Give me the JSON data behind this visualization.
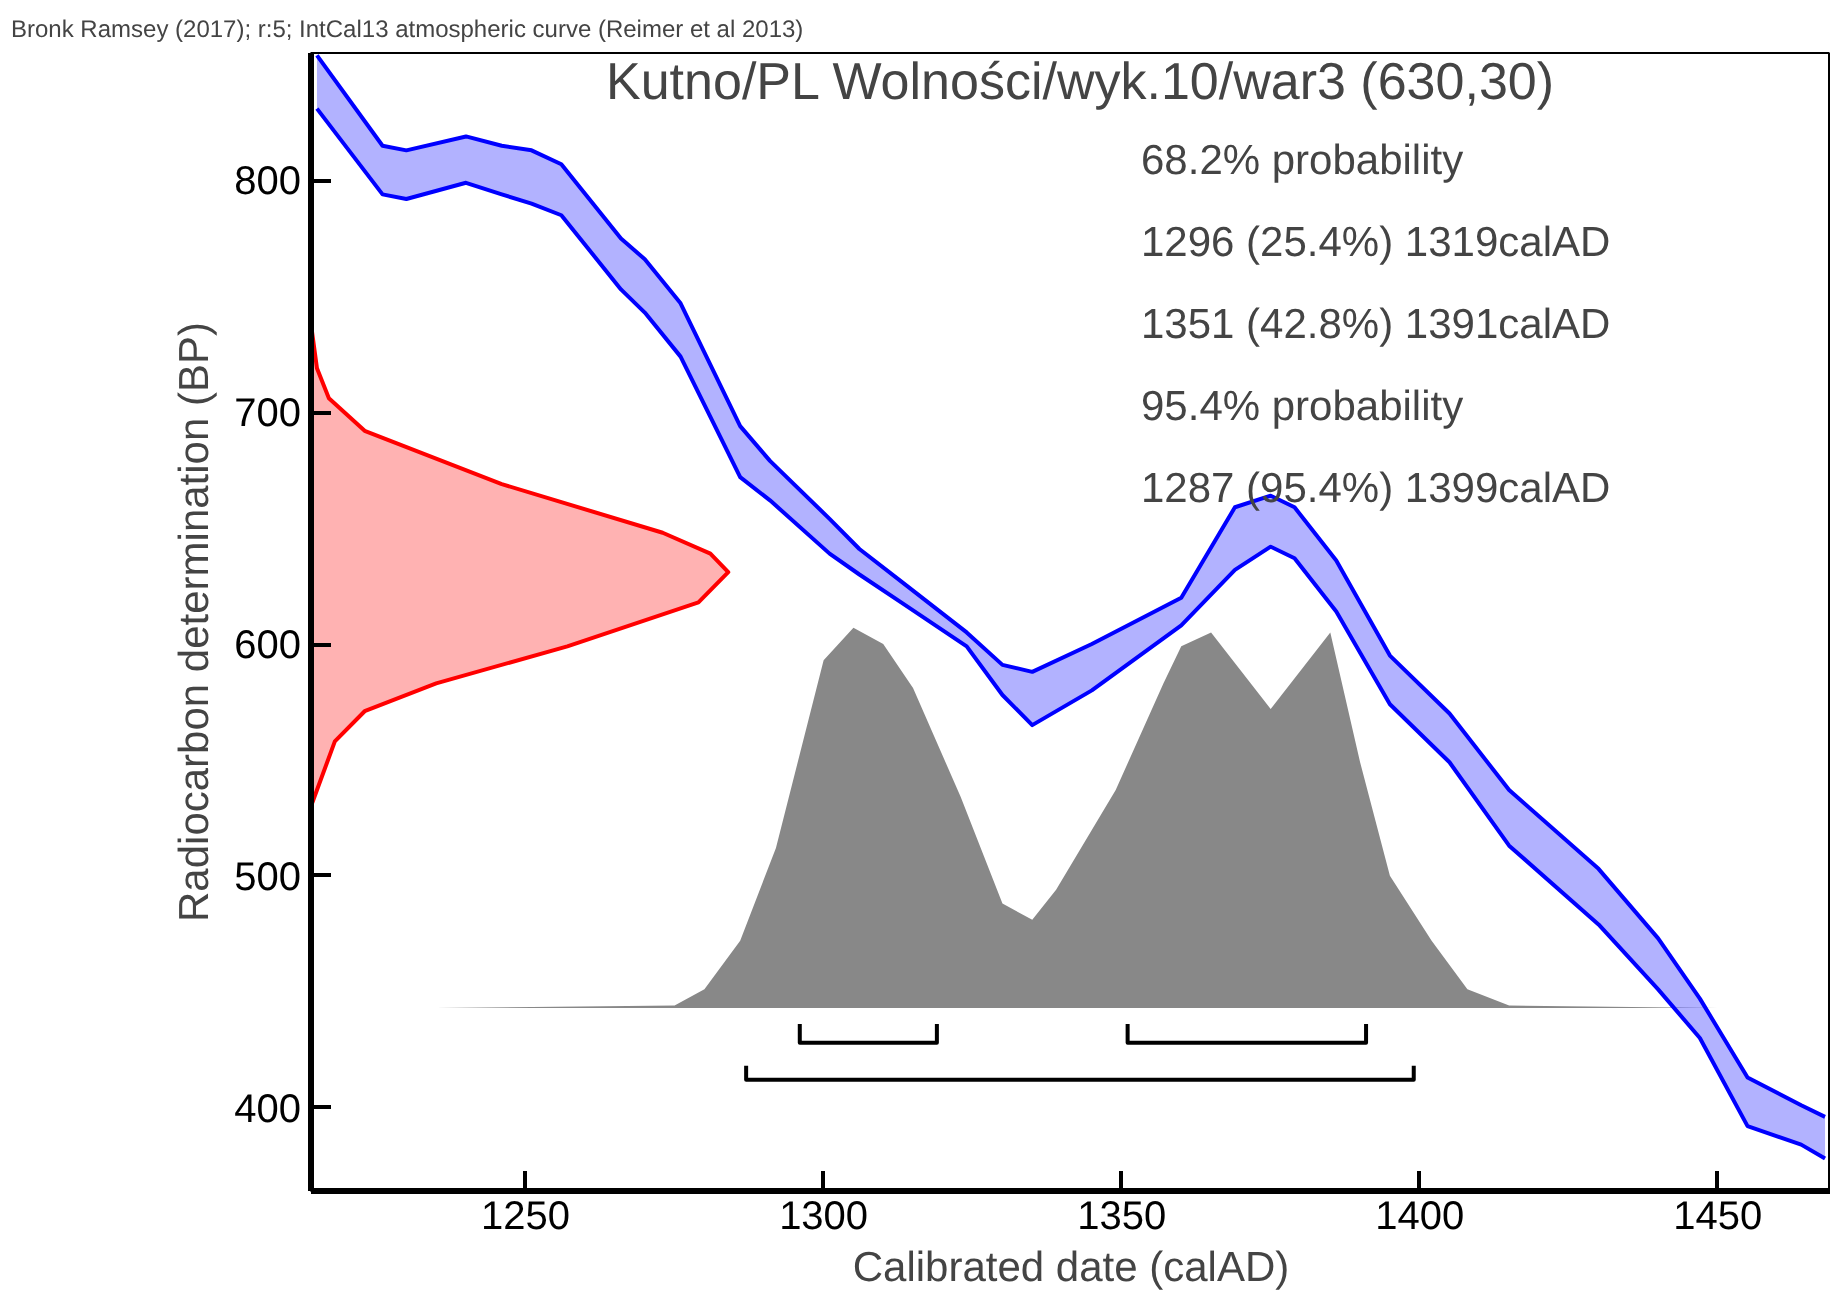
{
  "chart_data": {
    "type": "area",
    "title": "Kutno/PL Wolności/wyk.10/war3 (630,30)",
    "xlabel": "Calibrated date (calAD)",
    "ylabel": "Radiocarbon determination (BP)",
    "annotations": [
      "Bronk Ramsey (2017); r:5; IntCal13 atmospheric curve (Reimer et al 2013)",
      "68.2% probability",
      "1296 (25.4%) 1319calAD",
      "1351 (42.8%) 1391calAD",
      "95.4% probability",
      "1287 (95.4%) 1399calAD"
    ],
    "xlim": [
      1214,
      1469
    ],
    "ylim": [
      364,
      855
    ],
    "xticks": [
      1250,
      1300,
      1350,
      1400,
      1450
    ],
    "yticks": [
      400,
      500,
      600,
      700,
      800
    ],
    "series": [
      {
        "type": "line",
        "color": "#0000ff",
        "line_style": "solid",
        "x": [
          1215,
          1226,
          1230,
          1240,
          1246,
          1251,
          1256,
          1266,
          1270,
          1276,
          1286,
          1291,
          1301,
          1306,
          1313,
          1324,
          1330,
          1335,
          1345,
          1360,
          1369,
          1375,
          1379,
          1386,
          1395,
          1405,
          1415,
          1430,
          1440,
          1447,
          1455,
          1464,
          1468
        ],
        "values": [
          854,
          815,
          813,
          819,
          815,
          813,
          807,
          775,
          766,
          747,
          694,
          679,
          654,
          641,
          627,
          605,
          591,
          588,
          600,
          620,
          659,
          664,
          659,
          636,
          595,
          570,
          537,
          503,
          473,
          447,
          413,
          401,
          396
        ],
        "upper": [
          854,
          815,
          813,
          819,
          815,
          813,
          807,
          775,
          766,
          747,
          694,
          679,
          654,
          641,
          627,
          605,
          591,
          588,
          600,
          620,
          659,
          664,
          659,
          636,
          595,
          570,
          537,
          503,
          473,
          447,
          413,
          401,
          396
        ],
        "lower": [
          831,
          794,
          792,
          799,
          794,
          790,
          785,
          753,
          743,
          724,
          672,
          662,
          639,
          630,
          618,
          599,
          578,
          565,
          580,
          608,
          632,
          642,
          637,
          614,
          574,
          549,
          513,
          479,
          451,
          430,
          392,
          384,
          378
        ]
      },
      {
        "type": "line",
        "color": "#0000ff",
        "x": [
          1215,
          1226,
          1230,
          1240,
          1246,
          1251,
          1256,
          1266,
          1270,
          1276,
          1286,
          1291,
          1301,
          1306,
          1313,
          1324,
          1330,
          1335,
          1345,
          1360,
          1369,
          1375,
          1379,
          1386,
          1395,
          1405,
          1415,
          1430,
          1440,
          1447,
          1455,
          1464,
          1468
        ],
        "values": [
          831,
          794,
          792,
          799,
          794,
          790,
          785,
          753,
          743,
          724,
          672,
          662,
          639,
          630,
          618,
          599,
          578,
          565,
          580,
          608,
          632,
          642,
          637,
          614,
          574,
          549,
          513,
          479,
          451,
          430,
          392,
          384,
          378
        ]
      },
      {
        "color": "#ff0000",
        "line_style": "solid",
        "x": [
          1214,
          1215,
          1217,
          1223,
          1246,
          1273,
          1281,
          1284,
          1279,
          1257,
          1235,
          1223,
          1218,
          1215,
          1214
        ],
        "values": [
          738,
          719,
          706,
          692,
          669,
          648,
          639,
          631,
          618,
          599,
          583,
          571,
          558,
          537,
          530
        ]
      },
      {
        "color": "#888888",
        "x": [
          1235,
          1275,
          1280,
          1286,
          1292,
          1300,
          1305,
          1310,
          1315,
          1323,
          1330,
          1335,
          1339,
          1349,
          1357,
          1360,
          1365,
          1375,
          1385,
          1390,
          1395,
          1402,
          1408,
          1415,
          1450
        ],
        "values": [
          443,
          444,
          451,
          472,
          512,
          593,
          607,
          600,
          581,
          534,
          488,
          481,
          494,
          537,
          583,
          599,
          605,
          572,
          605,
          549,
          500,
          472,
          451,
          444,
          443
        ]
      },
      {
        "type": "line",
        "color": "#000000",
        "x": [
          1296,
          1296,
          1319,
          1319
        ],
        "values": [
          436,
          428,
          428,
          436
        ]
      },
      {
        "type": "line",
        "color": "#000000",
        "x": [
          1351,
          1351,
          1391,
          1391
        ],
        "values": [
          436,
          428,
          428,
          436
        ]
      },
      {
        "type": "line",
        "color": "#000000",
        "x": [
          1287,
          1287,
          1399,
          1399
        ],
        "values": [
          418,
          412,
          412,
          418
        ]
      }
    ]
  }
}
